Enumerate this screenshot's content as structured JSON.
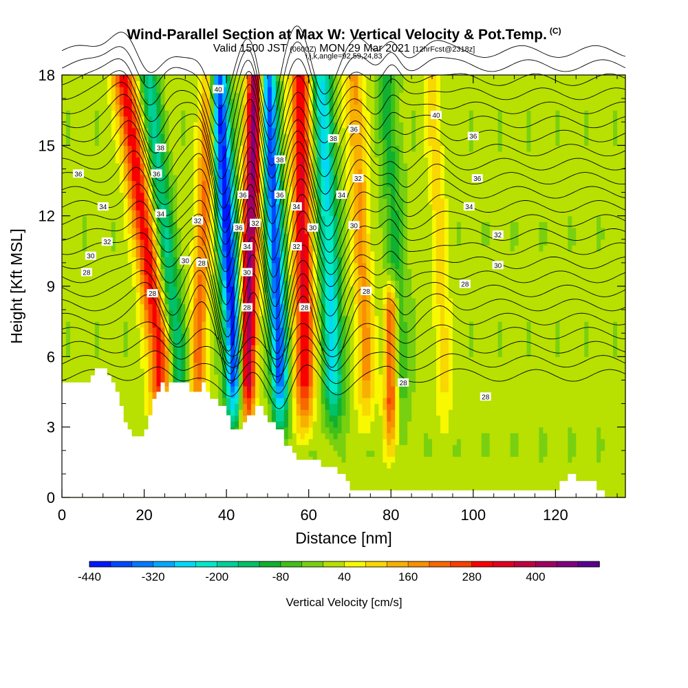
{
  "title": "Wind-Parallel Section at Max W: Vertical Velocity & Pot.Temp.",
  "title_mark": "(C)",
  "subtitle": {
    "valid_label": "Valid 1500 JST",
    "utc": "(0600Z)",
    "date": "MON 29 Mar 2021",
    "forecast": "[12hrFcst@2318z]"
  },
  "section_info": "i,j,k,angle=92,59,24,83",
  "chart_data": {
    "type": "heatmap",
    "xlabel": "Distance [nm]",
    "ylabel": "Height [Kft MSL]",
    "xlim": [
      0,
      137
    ],
    "ylim": [
      0,
      18
    ],
    "x_ticks": [
      "0",
      "20",
      "40",
      "60",
      "80",
      "100",
      "120"
    ],
    "y_ticks": [
      "0",
      "3",
      "6",
      "9",
      "12",
      "15",
      "18"
    ],
    "colorbar": {
      "label": "Vertical Velocity [cm/s]",
      "tick_labels": [
        "-440",
        "-320",
        "-200",
        "-80",
        "40",
        "160",
        "280",
        "400"
      ],
      "levels_min": -440,
      "levels_step": 40,
      "colors": [
        "#0018ff",
        "#0048ff",
        "#0078ff",
        "#00a8ff",
        "#00d8f8",
        "#00e8c8",
        "#00d098",
        "#00c068",
        "#10b030",
        "#40c018",
        "#78d010",
        "#b8e000",
        "#f8f800",
        "#f8d800",
        "#f8b000",
        "#f89000",
        "#f86800",
        "#f84000",
        "#f80000",
        "#e00020",
        "#c00040",
        "#a00060",
        "#800080",
        "#580090"
      ]
    },
    "terrain_kft": [
      [
        0,
        4.9
      ],
      [
        7,
        4.9
      ],
      [
        7,
        5.2
      ],
      [
        8,
        5.2
      ],
      [
        8,
        5.5
      ],
      [
        11,
        5.5
      ],
      [
        11,
        5.2
      ],
      [
        12,
        5.2
      ],
      [
        12,
        4.9
      ],
      [
        13,
        4.9
      ],
      [
        13,
        4.5
      ],
      [
        14,
        4.5
      ],
      [
        14,
        3.9
      ],
      [
        15,
        3.9
      ],
      [
        15,
        3.2
      ],
      [
        16,
        3.2
      ],
      [
        16,
        2.9
      ],
      [
        17,
        2.9
      ],
      [
        17,
        2.6
      ],
      [
        20,
        2.6
      ],
      [
        20,
        2.9
      ],
      [
        21,
        2.9
      ],
      [
        21,
        3.5
      ],
      [
        22,
        3.5
      ],
      [
        22,
        4.2
      ],
      [
        23,
        4.2
      ],
      [
        23,
        4.5
      ],
      [
        24,
        4.5
      ],
      [
        24,
        4.9
      ],
      [
        25,
        4.9
      ],
      [
        25,
        4.5
      ],
      [
        26,
        4.5
      ],
      [
        26,
        4.9
      ],
      [
        31,
        4.9
      ],
      [
        31,
        4.5
      ],
      [
        34,
        4.5
      ],
      [
        34,
        4.9
      ],
      [
        35,
        4.9
      ],
      [
        35,
        4.5
      ],
      [
        36,
        4.5
      ],
      [
        36,
        4.2
      ],
      [
        38,
        4.2
      ],
      [
        38,
        3.9
      ],
      [
        40,
        3.9
      ],
      [
        40,
        3.5
      ],
      [
        41,
        3.5
      ],
      [
        41,
        2.9
      ],
      [
        44,
        2.9
      ],
      [
        44,
        3.2
      ],
      [
        45,
        3.2
      ],
      [
        45,
        3.5
      ],
      [
        47,
        3.5
      ],
      [
        47,
        3.9
      ],
      [
        49,
        3.9
      ],
      [
        49,
        3.5
      ],
      [
        50,
        3.5
      ],
      [
        50,
        3.2
      ],
      [
        52,
        3.2
      ],
      [
        52,
        2.9
      ],
      [
        54,
        2.9
      ],
      [
        54,
        2.2
      ],
      [
        56,
        2.2
      ],
      [
        56,
        1.9
      ],
      [
        57,
        1.9
      ],
      [
        57,
        1.6
      ],
      [
        63,
        1.6
      ],
      [
        63,
        1.3
      ],
      [
        67,
        1.3
      ],
      [
        67,
        1.0
      ],
      [
        69,
        1.0
      ],
      [
        69,
        0.7
      ],
      [
        70,
        0.7
      ],
      [
        70,
        0.3
      ],
      [
        121,
        0.3
      ],
      [
        121,
        0.7
      ],
      [
        123,
        0.7
      ],
      [
        123,
        1.0
      ],
      [
        125,
        1.0
      ],
      [
        125,
        0.7
      ],
      [
        130,
        0.7
      ],
      [
        130,
        0.3
      ],
      [
        132,
        0.3
      ],
      [
        132,
        0
      ],
      [
        0,
        0
      ]
    ],
    "updrafts": [
      {
        "x0": 24,
        "x1": 15,
        "amp": 300,
        "w": 2.8
      },
      {
        "x0": 33,
        "x1": 36,
        "amp": 200,
        "w": 2.0
      },
      {
        "x0": 45,
        "x1": 47,
        "amp": 440,
        "w": 2.0
      },
      {
        "x0": 59,
        "x1": 58,
        "amp": 320,
        "w": 2.4
      },
      {
        "x0": 74,
        "x1": 71,
        "amp": 160,
        "w": 2.2
      },
      {
        "x0": 93,
        "x1": 90,
        "amp": 90,
        "w": 2.0
      },
      {
        "x0": 80,
        "x1": 80,
        "amp": 280,
        "w": 1.6,
        "y0": 2,
        "y1": 8
      }
    ],
    "downdrafts": [
      {
        "x0": 42,
        "x1": 38,
        "amp": -440,
        "w": 2.2
      },
      {
        "x0": 53,
        "x1": 50,
        "amp": -400,
        "w": 2.0
      },
      {
        "x0": 28,
        "x1": 21,
        "amp": -180,
        "w": 2.4
      },
      {
        "x0": 66,
        "x1": 63,
        "amp": -260,
        "w": 2.4
      },
      {
        "x0": 82,
        "x1": 79,
        "amp": -100,
        "w": 2.4
      }
    ],
    "contour_labels": [
      {
        "text": "40",
        "x": 38,
        "y": 17.4
      },
      {
        "text": "40",
        "x": 91,
        "y": 16.3
      },
      {
        "text": "38",
        "x": 24,
        "y": 14.9
      },
      {
        "text": "38",
        "x": 53,
        "y": 14.4
      },
      {
        "text": "38",
        "x": 66,
        "y": 15.3
      },
      {
        "text": "36",
        "x": 71,
        "y": 15.7
      },
      {
        "text": "36",
        "x": 4,
        "y": 13.8
      },
      {
        "text": "36",
        "x": 23,
        "y": 13.8
      },
      {
        "text": "36",
        "x": 100,
        "y": 15.4
      },
      {
        "text": "36",
        "x": 101,
        "y": 13.6
      },
      {
        "text": "36",
        "x": 44,
        "y": 12.9
      },
      {
        "text": "36",
        "x": 53,
        "y": 12.9
      },
      {
        "text": "34",
        "x": 10,
        "y": 12.4
      },
      {
        "text": "34",
        "x": 24,
        "y": 12.1
      },
      {
        "text": "34",
        "x": 57,
        "y": 12.4
      },
      {
        "text": "34",
        "x": 68,
        "y": 12.9
      },
      {
        "text": "34",
        "x": 99,
        "y": 12.4
      },
      {
        "text": "34",
        "x": 45,
        "y": 10.7
      },
      {
        "text": "32",
        "x": 11,
        "y": 10.9
      },
      {
        "text": "32",
        "x": 33,
        "y": 11.8
      },
      {
        "text": "32",
        "x": 47,
        "y": 11.7
      },
      {
        "text": "32",
        "x": 72,
        "y": 13.6
      },
      {
        "text": "32",
        "x": 57,
        "y": 10.7
      },
      {
        "text": "32",
        "x": 106,
        "y": 11.2
      },
      {
        "text": "30",
        "x": 7,
        "y": 10.3
      },
      {
        "text": "30",
        "x": 30,
        "y": 10.1
      },
      {
        "text": "30",
        "x": 61,
        "y": 11.5
      },
      {
        "text": "30",
        "x": 71,
        "y": 11.6
      },
      {
        "text": "30",
        "x": 45,
        "y": 9.6
      },
      {
        "text": "30",
        "x": 106,
        "y": 9.9
      },
      {
        "text": "36",
        "x": 43,
        "y": 11.5
      },
      {
        "text": "28",
        "x": 6,
        "y": 9.6
      },
      {
        "text": "28",
        "x": 34,
        "y": 10.0
      },
      {
        "text": "28",
        "x": 22,
        "y": 8.7
      },
      {
        "text": "28",
        "x": 45,
        "y": 8.1
      },
      {
        "text": "28",
        "x": 59,
        "y": 8.1
      },
      {
        "text": "28",
        "x": 74,
        "y": 8.8
      },
      {
        "text": "28",
        "x": 98,
        "y": 9.1
      },
      {
        "text": "28",
        "x": 83,
        "y": 4.9
      },
      {
        "text": "28",
        "x": 103,
        "y": 4.3
      }
    ]
  }
}
